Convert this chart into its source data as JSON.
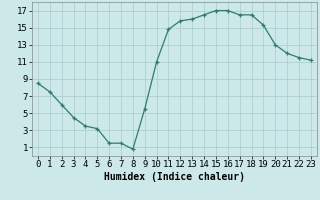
{
  "x": [
    0,
    1,
    2,
    3,
    4,
    5,
    6,
    7,
    8,
    9,
    10,
    11,
    12,
    13,
    14,
    15,
    16,
    17,
    18,
    19,
    20,
    21,
    22,
    23
  ],
  "y": [
    8.5,
    7.5,
    6.0,
    4.5,
    3.5,
    3.2,
    1.5,
    1.5,
    0.8,
    5.5,
    11.0,
    14.8,
    15.8,
    16.0,
    16.5,
    17.0,
    17.0,
    16.5,
    16.5,
    15.3,
    13.0,
    12.0,
    11.5,
    11.2
  ],
  "line_color": "#2e7d6e",
  "marker_color": "#2e7d6e",
  "bg_color": "#cce8e8",
  "grid_color": "#a8cccc",
  "xlabel": "Humidex (Indice chaleur)",
  "xlim": [
    -0.5,
    23.5
  ],
  "ylim": [
    0,
    18
  ],
  "yticks": [
    1,
    3,
    5,
    7,
    9,
    11,
    13,
    15,
    17
  ],
  "xticks": [
    0,
    1,
    2,
    3,
    4,
    5,
    6,
    7,
    8,
    9,
    10,
    11,
    12,
    13,
    14,
    15,
    16,
    17,
    18,
    19,
    20,
    21,
    22,
    23
  ],
  "xlabel_fontsize": 7,
  "tick_fontsize": 6.5
}
